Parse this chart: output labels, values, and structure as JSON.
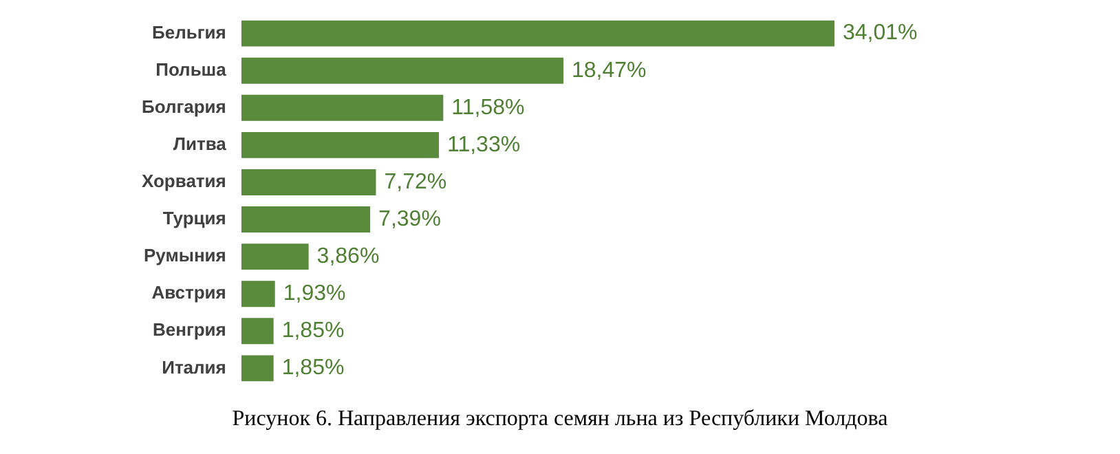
{
  "chart_data": {
    "type": "bar",
    "orientation": "horizontal",
    "title": "Рисунок 6. Направления экспорта семян льна из Республики Молдова",
    "categories": [
      "Бельгия",
      "Польша",
      "Болгария",
      "Литва",
      "Хорватия",
      "Турция",
      "Румыния",
      "Австрия",
      "Венгрия",
      "Италия"
    ],
    "values": [
      34.01,
      18.47,
      11.58,
      11.33,
      7.72,
      7.39,
      3.86,
      1.93,
      1.85,
      1.85
    ],
    "value_labels": [
      "34,01%",
      "18,47%",
      "11,58%",
      "11,33%",
      "7,72%",
      "7,39%",
      "3,86%",
      "1,93%",
      "1,85%",
      "1,85%"
    ],
    "color": "#5a8a3c",
    "legend": false
  }
}
